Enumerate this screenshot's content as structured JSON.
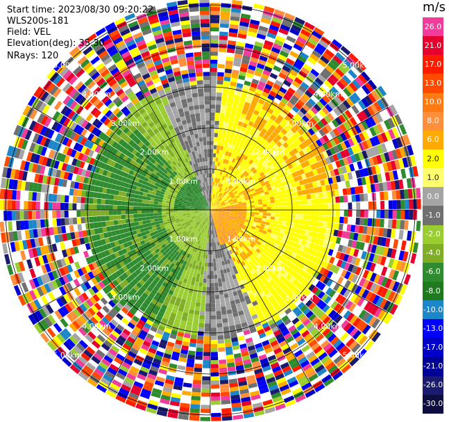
{
  "header": {
    "start_time": "Start time: 2023/08/30 09:20:22",
    "instrument": "WLS200s-181",
    "field": "Field: VEL",
    "elevation": "Elevation(deg): 35.30",
    "nrays": "NRays: 120"
  },
  "colorbar": {
    "unit": "m/s",
    "labels": [
      "26.0",
      "21.0",
      "17.0",
      "13.0",
      "10.0",
      "8.0",
      "6.0",
      "2.0",
      "1.0",
      "0.0",
      "-1.0",
      "-2.0",
      "-4.0",
      "-6.0",
      "-8.0",
      "-10.0",
      "-13.0",
      "-17.0",
      "-21.0",
      "-26.0",
      "-30.0"
    ],
    "colors": [
      "#f03c9a",
      "#e6002d",
      "#ff1b00",
      "#ff4a00",
      "#ff7a12",
      "#ff8f3d",
      "#ffaa00",
      "#ffff00",
      "#ffff6e",
      "#a5a5a5",
      "#707070",
      "#9acd32",
      "#7fae26",
      "#2e8b2e",
      "#1f7a1f",
      "#1c86c8",
      "#0000ff",
      "#0000c8",
      "#000096",
      "#1a1a6e",
      "#0d0d40"
    ]
  },
  "chart_data": {
    "type": "heatmap",
    "plot_kind": "PPI polar sector scan",
    "field": "VEL",
    "units": "m/s",
    "nrays": 120,
    "range_rings_km": [
      1,
      2,
      3,
      4,
      5
    ],
    "ring_labels": [
      "1.00km",
      "2.00km",
      "3.00km",
      "4.00km",
      "5.00km"
    ],
    "spokes_deg": [
      0,
      30,
      60,
      90,
      120,
      150,
      180,
      210,
      240,
      270,
      300,
      330
    ],
    "color_scale_min": -30.0,
    "color_scale_max": 26.0,
    "approx_pattern": {
      "clean_data_radius_km": 3.0,
      "east_half_velocity": "positive, +2 to +10 (yellow/orange)",
      "west_half_velocity": "negative, -2 to -8 (light/dark green)",
      "transition_band": "near 0 (grey)",
      "outer_region": "noise beyond ~3 km"
    }
  }
}
